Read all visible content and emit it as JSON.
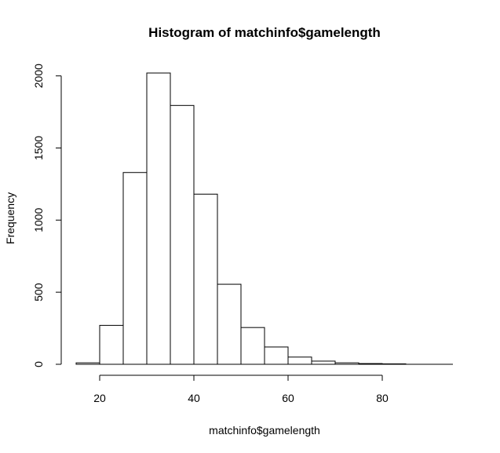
{
  "chart_data": {
    "type": "bar",
    "title": "Histogram of matchinfo$gamelength",
    "xlabel": "matchinfo$gamelength",
    "ylabel": "Frequency",
    "bins": [
      {
        "start": 15,
        "end": 20,
        "count": 10
      },
      {
        "start": 20,
        "end": 25,
        "count": 270
      },
      {
        "start": 25,
        "end": 30,
        "count": 1330
      },
      {
        "start": 30,
        "end": 35,
        "count": 2020
      },
      {
        "start": 35,
        "end": 40,
        "count": 1795
      },
      {
        "start": 40,
        "end": 45,
        "count": 1180
      },
      {
        "start": 45,
        "end": 50,
        "count": 555
      },
      {
        "start": 50,
        "end": 55,
        "count": 255
      },
      {
        "start": 55,
        "end": 60,
        "count": 120
      },
      {
        "start": 60,
        "end": 65,
        "count": 50
      },
      {
        "start": 65,
        "end": 70,
        "count": 22
      },
      {
        "start": 70,
        "end": 75,
        "count": 10
      },
      {
        "start": 75,
        "end": 80,
        "count": 5
      },
      {
        "start": 80,
        "end": 85,
        "count": 3
      },
      {
        "start": 85,
        "end": 90,
        "count": 0
      },
      {
        "start": 90,
        "end": 95,
        "count": 0
      }
    ],
    "xlim": [
      15,
      95
    ],
    "ylim": [
      0,
      2020
    ],
    "x_ticks": [
      20,
      40,
      60,
      80
    ],
    "y_ticks": [
      0,
      500,
      1000,
      1500,
      2000
    ],
    "grid": false,
    "legend": "none"
  }
}
